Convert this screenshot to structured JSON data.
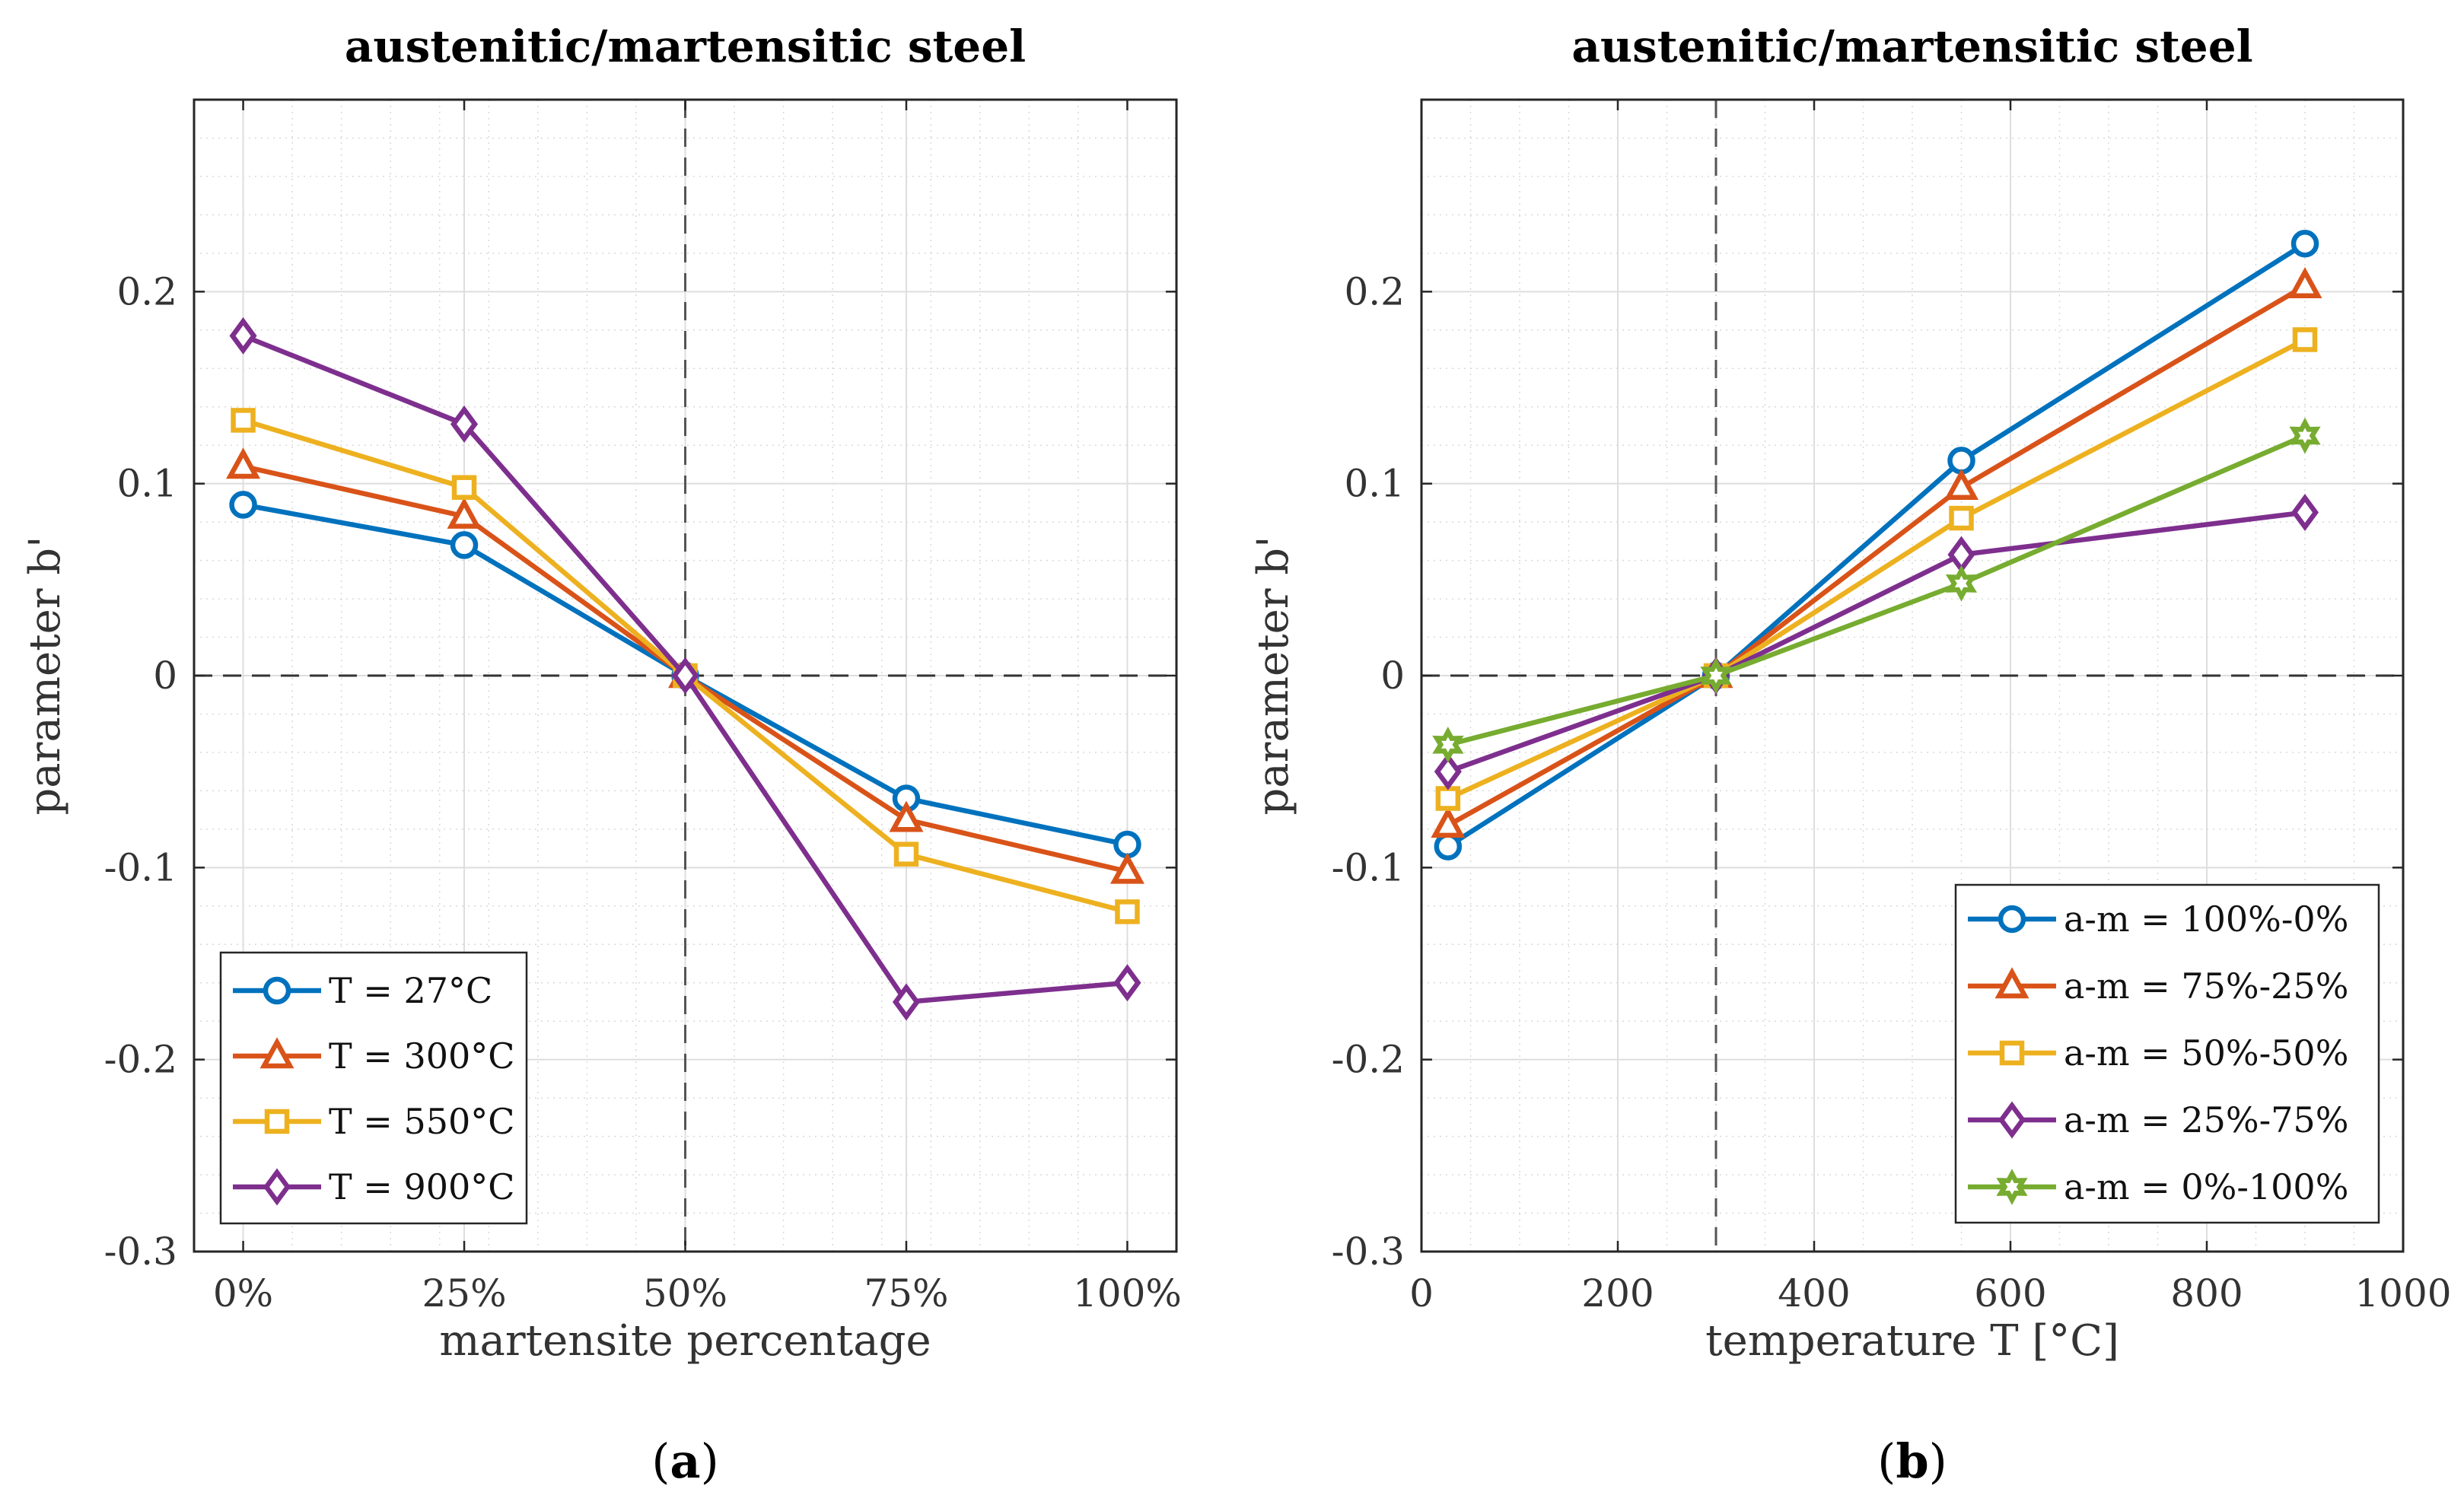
{
  "chart_data": [
    {
      "type": "line",
      "panel_label": "a",
      "title": "austenitic/martensitic steel",
      "xlabel": "martensite percentage",
      "ylabel": "parameter b'",
      "categories": [
        "0%",
        "25%",
        "50%",
        "75%",
        "100%"
      ],
      "xlim": [
        0,
        100
      ],
      "ylim": [
        -0.3,
        0.3
      ],
      "yticks": [
        "-0.3",
        "-0.2",
        "-0.1",
        "0",
        "0.1",
        "0.2"
      ],
      "grid": true,
      "legend_position": "bottom-left",
      "series": [
        {
          "name": "T = 27°C",
          "marker": "circle",
          "color": "#0072BD",
          "values": [
            0.089,
            0.068,
            0.0,
            -0.064,
            -0.088
          ]
        },
        {
          "name": "T = 300°C",
          "marker": "triangle",
          "color": "#D95319",
          "values": [
            0.109,
            0.083,
            0.0,
            -0.075,
            -0.102
          ]
        },
        {
          "name": "T = 550°C",
          "marker": "square",
          "color": "#EDB120",
          "values": [
            0.133,
            0.098,
            0.0,
            -0.093,
            -0.123
          ]
        },
        {
          "name": "T = 900°C",
          "marker": "diamond",
          "color": "#7E2F8E",
          "values": [
            0.177,
            0.131,
            0.0,
            -0.17,
            -0.16
          ]
        }
      ]
    },
    {
      "type": "line",
      "panel_label": "b",
      "title": "austenitic/martensitic steel",
      "xlabel": "temperature T [°C]",
      "ylabel": "parameter b'",
      "x": [
        27,
        300,
        550,
        900
      ],
      "xlim": [
        0,
        1000
      ],
      "xticks": [
        "0",
        "200",
        "400",
        "600",
        "800",
        "1000"
      ],
      "ylim": [
        -0.3,
        0.3
      ],
      "yticks": [
        "-0.3",
        "-0.2",
        "-0.1",
        "0",
        "0.1",
        "0.2"
      ],
      "grid": true,
      "legend_position": "bottom-right",
      "series": [
        {
          "name": "a-m = 100%-0%",
          "marker": "circle",
          "color": "#0072BD",
          "values": [
            -0.089,
            0.0,
            0.112,
            0.225
          ]
        },
        {
          "name": "a-m = 75%-25%",
          "marker": "triangle",
          "color": "#D95319",
          "values": [
            -0.078,
            0.0,
            0.098,
            0.203
          ]
        },
        {
          "name": "a-m = 50%-50%",
          "marker": "square",
          "color": "#EDB120",
          "values": [
            -0.064,
            0.0,
            0.082,
            0.175
          ]
        },
        {
          "name": "a-m = 25%-75%",
          "marker": "diamond",
          "color": "#7E2F8E",
          "values": [
            -0.05,
            0.0,
            0.063,
            0.085
          ]
        },
        {
          "name": "a-m = 0%-100%",
          "marker": "hexagram",
          "color": "#77AC30",
          "values": [
            -0.036,
            0.0,
            0.048,
            0.125
          ]
        }
      ]
    }
  ]
}
